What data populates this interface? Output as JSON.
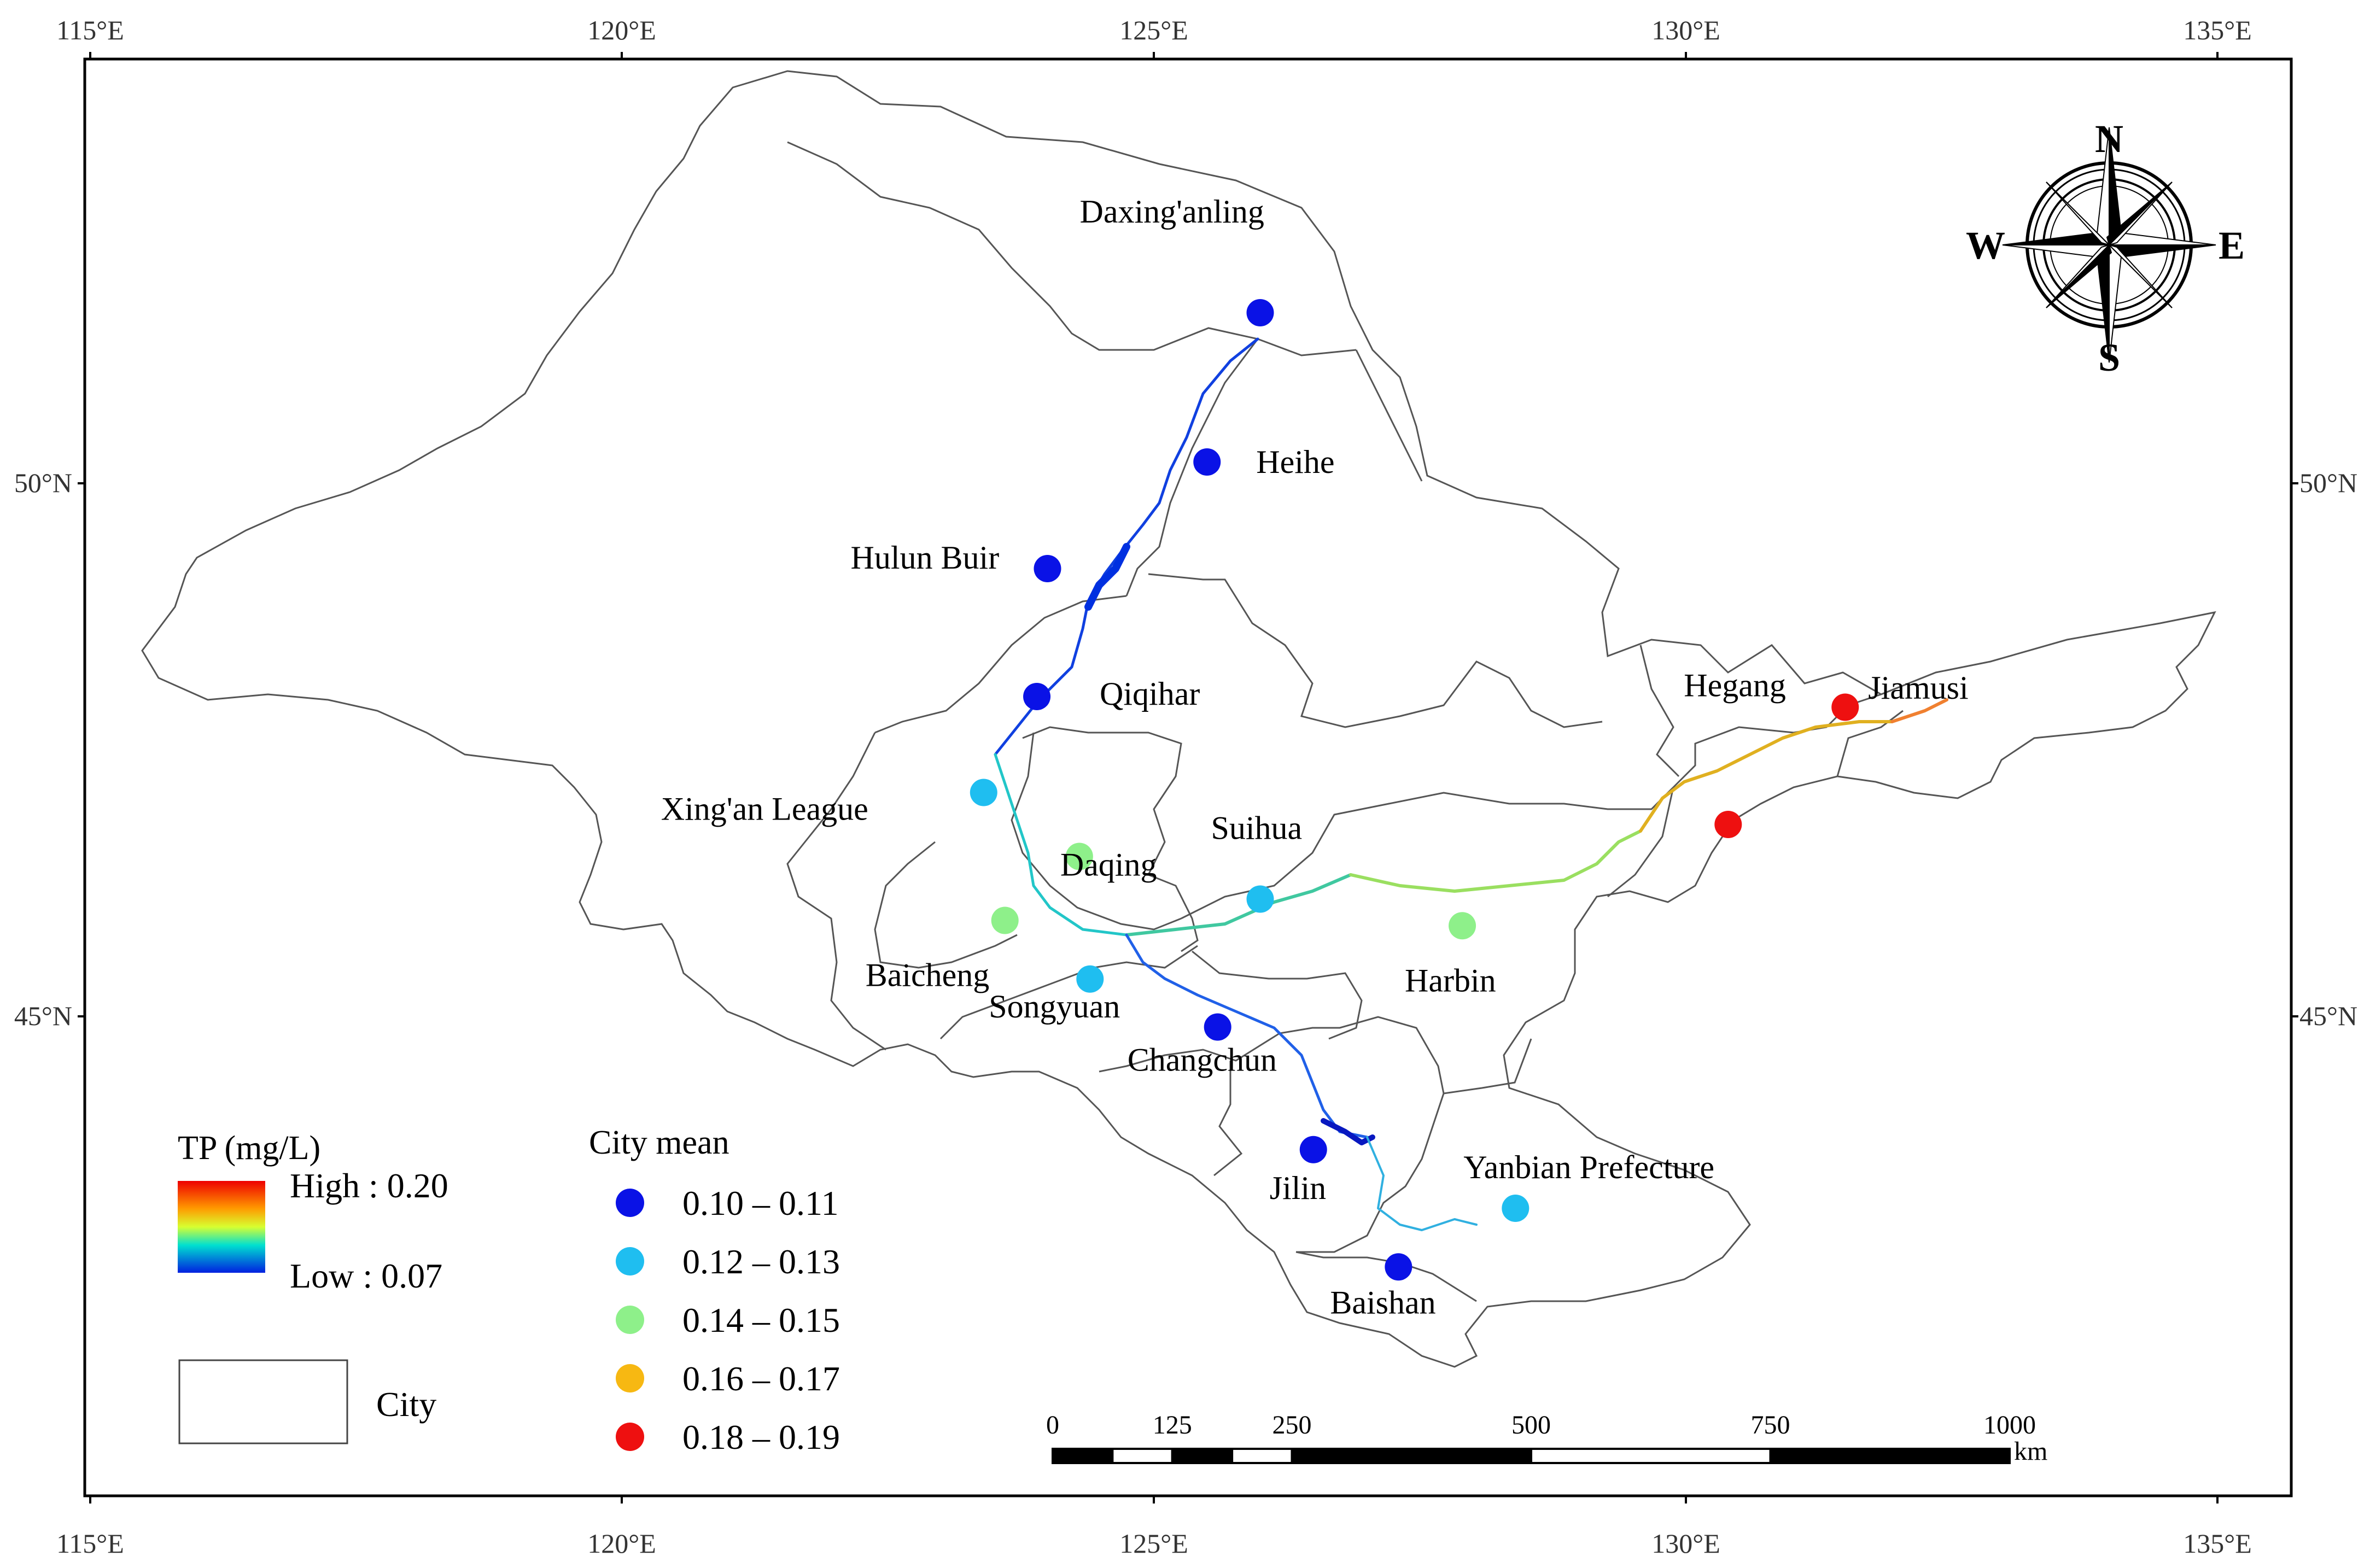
{
  "axes": {
    "lon_labels": [
      "115°E",
      "120°E",
      "125°E",
      "130°E",
      "135°E"
    ],
    "lat_labels": [
      "50°N",
      "45°N"
    ]
  },
  "cities": [
    {
      "name": "Daxing'anling",
      "lon": 126.0,
      "lat": 51.6,
      "cls": 0
    },
    {
      "name": "Heihe",
      "lon": 125.5,
      "lat": 50.2,
      "cls": 0
    },
    {
      "name": "Hulun Buir",
      "lon": 124.0,
      "lat": 49.2,
      "cls": 0
    },
    {
      "name": "Qiqihar",
      "lon": 123.9,
      "lat": 48.0,
      "cls": 0
    },
    {
      "name": "Xing'an League",
      "lon": 123.4,
      "lat": 47.1,
      "cls": 1
    },
    {
      "name": "Daqing",
      "lon": 124.3,
      "lat": 46.5,
      "cls": 2
    },
    {
      "name": "Suihua",
      "lon": 126.0,
      "lat": 46.1,
      "cls": 1
    },
    {
      "name": "Baicheng",
      "lon": 123.6,
      "lat": 45.9,
      "cls": 2
    },
    {
      "name": "Harbin",
      "lon": 127.9,
      "lat": 45.85,
      "cls": 2
    },
    {
      "name": "Songyuan",
      "lon": 124.4,
      "lat": 45.35,
      "cls": 1
    },
    {
      "name": "Changchun",
      "lon": 125.6,
      "lat": 44.9,
      "cls": 0
    },
    {
      "name": "Jilin",
      "lon": 126.5,
      "lat": 43.75,
      "cls": 0
    },
    {
      "name": "Yanbian Prefecture",
      "lon": 128.4,
      "lat": 43.2,
      "cls": 1
    },
    {
      "name": "Baishan",
      "lon": 127.3,
      "lat": 42.65,
      "cls": 0
    },
    {
      "name": "Hegang",
      "lon": 131.5,
      "lat": 47.9,
      "cls": 4
    },
    {
      "name": "Jiamusi",
      "lon": 130.4,
      "lat": 46.8,
      "cls": 4
    }
  ],
  "legend": {
    "tp_title": "TP (mg/L)",
    "tp_high": "High : 0.20",
    "tp_low": "Low : 0.07",
    "city_box_label": "City",
    "city_mean_title": "City mean",
    "classes": [
      {
        "label": "0.10 – 0.11",
        "color": "#0a12e6"
      },
      {
        "label": "0.12 – 0.13",
        "color": "#1fbef0"
      },
      {
        "label": "0.14 – 0.15",
        "color": "#8ef08a"
      },
      {
        "label": "0.16 – 0.17",
        "color": "#f7b812"
      },
      {
        "label": "0.18 – 0.19",
        "color": "#ee1010"
      }
    ]
  },
  "scale_bar": {
    "labels": [
      "0",
      "125",
      "250",
      "500",
      "750",
      "1000"
    ],
    "values": [
      0,
      125,
      250,
      500,
      750,
      1000
    ],
    "unit": "km"
  },
  "compass": {
    "n": "N",
    "s": "S",
    "e": "E",
    "w": "W"
  },
  "colors": {
    "boundary": "#555555",
    "frame": "#000000"
  }
}
